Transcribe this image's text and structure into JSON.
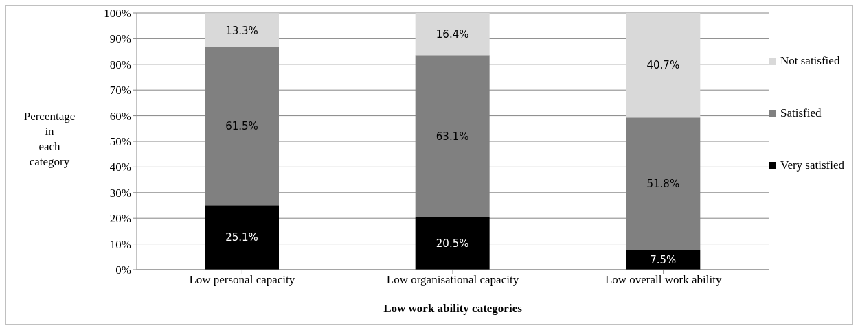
{
  "chart_data": {
    "type": "bar",
    "stacked": true,
    "xlabel": "Low work ability categories",
    "ylabel": "Percentage in each category",
    "categories": [
      "Low personal capacity",
      "Low organisational capacity",
      "Low overall work  ability"
    ],
    "series": [
      {
        "name": "Very satisfied",
        "color": "#000000",
        "values": [
          25.1,
          20.5,
          7.5
        ],
        "value_labels": [
          "25.1%",
          "20.5%",
          "7.5%"
        ]
      },
      {
        "name": "Satisfied",
        "color": "#808080",
        "values": [
          61.5,
          63.1,
          51.8
        ],
        "value_labels": [
          "61.5%",
          "63.1%",
          "51.8%"
        ]
      },
      {
        "name": "Not satisfied",
        "color": "#d9d9d9",
        "values": [
          13.3,
          16.4,
          40.7
        ],
        "value_labels": [
          "13.3%",
          "16.4%",
          "40.7%"
        ]
      }
    ],
    "ylim": [
      0,
      100
    ],
    "yticks": [
      {
        "value": 0,
        "label": "0%"
      },
      {
        "value": 10,
        "label": "10%"
      },
      {
        "value": 20,
        "label": "20%"
      },
      {
        "value": 30,
        "label": "30%"
      },
      {
        "value": 40,
        "label": "40%"
      },
      {
        "value": 50,
        "label": "50%"
      },
      {
        "value": 60,
        "label": "60%"
      },
      {
        "value": 70,
        "label": "70%"
      },
      {
        "value": 80,
        "label": "80%"
      },
      {
        "value": 90,
        "label": "90%"
      },
      {
        "value": 100,
        "label": "100%"
      }
    ],
    "grid": "y",
    "legend": "right"
  }
}
